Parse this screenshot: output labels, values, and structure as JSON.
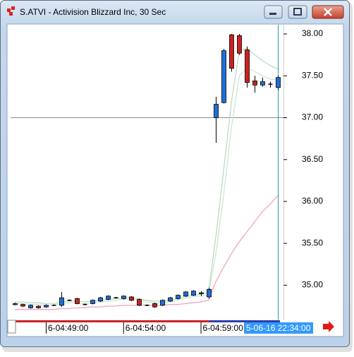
{
  "chart_data": {
    "type": "candlestick",
    "title": "S.ATVI - Activision Blizzard Inc, 30 Sec",
    "open": [
      34.77,
      34.77,
      34.73,
      34.75,
      34.74,
      34.76,
      34.76,
      34.82,
      34.84,
      34.77,
      34.78,
      34.81,
      34.83,
      34.85,
      34.84,
      34.86,
      34.83,
      34.76,
      34.78,
      34.76,
      34.81,
      34.84,
      34.87,
      34.88,
      34.9,
      34.86,
      37.0,
      37.18,
      37.99,
      37.98,
      37.81,
      37.44,
      37.39,
      37.4,
      37.36
    ],
    "high": [
      34.79,
      34.78,
      34.77,
      34.76,
      34.77,
      34.77,
      34.92,
      34.83,
      34.85,
      34.78,
      34.83,
      34.86,
      34.88,
      34.86,
      34.88,
      34.87,
      34.84,
      34.77,
      34.79,
      34.83,
      34.86,
      34.89,
      34.93,
      34.94,
      34.93,
      34.97,
      37.25,
      37.82,
      38.0,
      38.0,
      37.85,
      37.5,
      37.48,
      37.43,
      37.5
    ],
    "low": [
      34.76,
      34.74,
      34.72,
      34.72,
      34.73,
      34.75,
      34.74,
      34.81,
      34.77,
      34.76,
      34.77,
      34.8,
      34.82,
      34.84,
      34.83,
      34.81,
      34.75,
      34.75,
      34.73,
      34.75,
      34.8,
      34.83,
      34.86,
      34.87,
      34.87,
      34.84,
      36.7,
      37.17,
      37.55,
      37.75,
      37.36,
      37.3,
      37.37,
      37.36,
      37.33
    ],
    "close": [
      34.78,
      34.75,
      34.76,
      34.73,
      34.76,
      34.76,
      34.85,
      34.82,
      34.78,
      34.77,
      34.82,
      34.85,
      34.87,
      34.85,
      34.87,
      34.82,
      34.76,
      34.76,
      34.74,
      34.82,
      34.85,
      34.88,
      34.92,
      34.93,
      34.91,
      34.95,
      37.16,
      37.8,
      37.59,
      37.77,
      37.42,
      37.39,
      37.43,
      37.4,
      37.48
    ],
    "up_color": "#1f6fd8",
    "down_color": "#cc2020",
    "lines": [
      {
        "color": "#b9dcc0",
        "values": [
          34.8,
          34.8,
          34.79,
          34.79,
          34.78,
          34.78,
          34.8,
          34.81,
          34.81,
          34.8,
          34.81,
          34.82,
          34.83,
          34.84,
          34.85,
          34.85,
          34.84,
          34.82,
          34.81,
          34.81,
          34.82,
          34.84,
          34.86,
          34.88,
          34.89,
          34.91,
          35.6,
          36.4,
          37.2,
          37.8,
          37.83,
          37.75,
          37.68,
          37.62,
          37.58
        ]
      },
      {
        "color": "#cfe6d3",
        "values": [
          34.78,
          34.78,
          34.77,
          34.77,
          34.76,
          34.76,
          34.78,
          34.79,
          34.79,
          34.78,
          34.79,
          34.8,
          34.81,
          34.82,
          34.83,
          34.83,
          34.82,
          34.8,
          34.79,
          34.79,
          34.8,
          34.82,
          34.84,
          34.86,
          34.87,
          34.88,
          35.4,
          36.1,
          36.9,
          37.5,
          37.6,
          37.55,
          37.5,
          37.46,
          37.45
        ]
      },
      {
        "color": "#f0a6be",
        "values": [
          34.71,
          34.71,
          34.71,
          34.71,
          34.71,
          34.71,
          34.72,
          34.72,
          34.73,
          34.73,
          34.74,
          34.74,
          34.75,
          34.75,
          34.76,
          34.76,
          34.76,
          34.76,
          34.76,
          34.76,
          34.77,
          34.77,
          34.78,
          34.79,
          34.8,
          34.82,
          35.05,
          35.22,
          35.38,
          35.52,
          35.64,
          35.76,
          35.88,
          35.97,
          36.07
        ]
      }
    ],
    "reference_line": {
      "value": 37.0,
      "color": "#8c8c8c"
    },
    "cursor": {
      "index": 34,
      "label": "5-06-16 22:34:00",
      "color": "#2a9d9d"
    },
    "xlim": [
      -0.55,
      34.7
    ],
    "xticks": [
      {
        "value": 4,
        "label": "6-04:49:00"
      },
      {
        "value": 14,
        "label": "6-04:54:00"
      },
      {
        "value": 24,
        "label": "6-04:59:00"
      }
    ],
    "ylim": [
      34.59,
      38.11
    ],
    "yticks": [
      {
        "value": 35,
        "label": "35.00"
      },
      {
        "value": 35.5,
        "label": "35.50"
      },
      {
        "value": 36,
        "label": "36.00"
      },
      {
        "value": 36.5,
        "label": "36.50"
      },
      {
        "value": 37,
        "label": "37.00"
      },
      {
        "value": 37.5,
        "label": "37.50"
      },
      {
        "value": 38,
        "label": "38.00"
      }
    ]
  }
}
